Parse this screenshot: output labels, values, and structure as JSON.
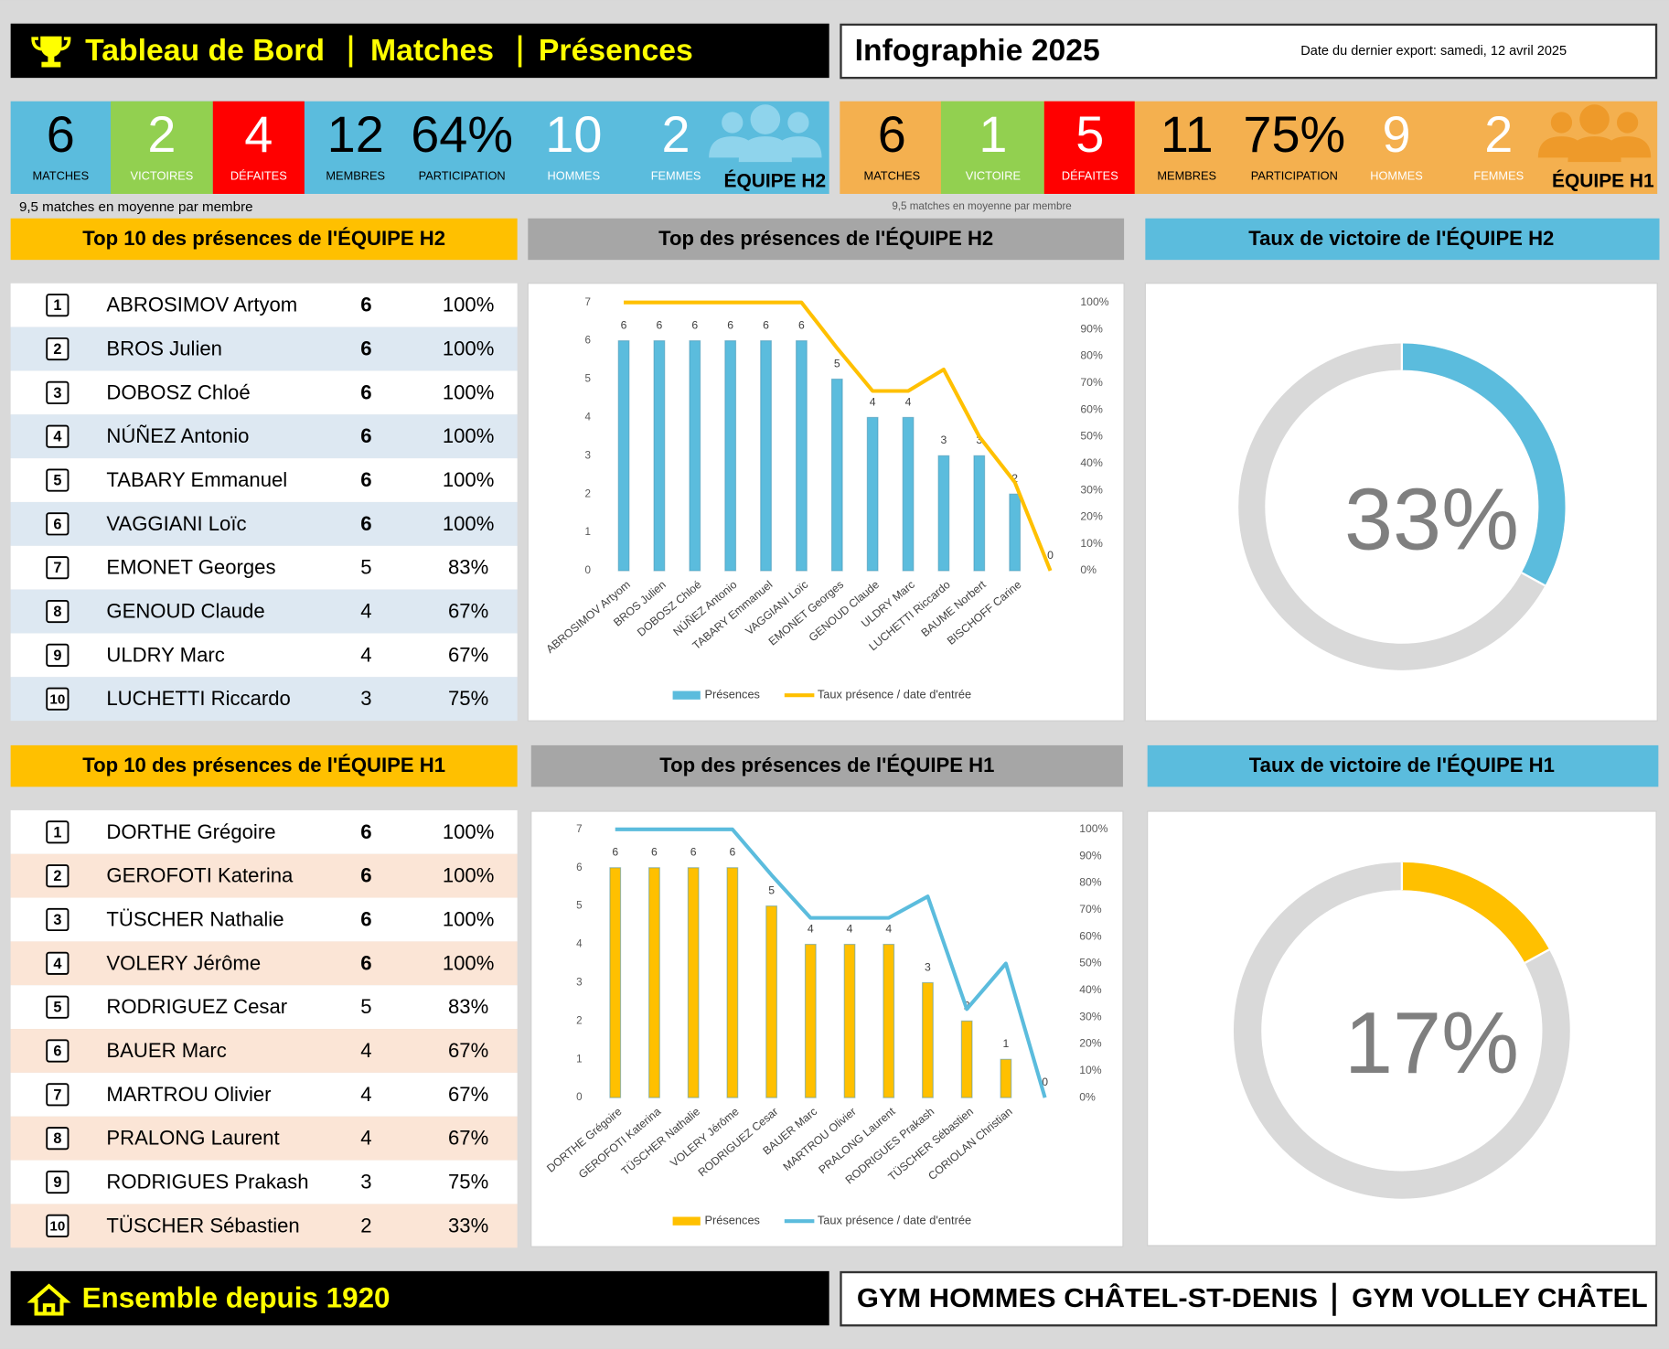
{
  "header": {
    "title_parts": [
      "Tableau de Bord",
      "Matches",
      "Présences"
    ],
    "subtitle": "Infographie 2025",
    "export": "Date du dernier export:  samedi, 12 avril 2025"
  },
  "teams": [
    {
      "name": "ÉQUIPE H2",
      "note": "9,5 matches en moyenne par membre",
      "kpis": [
        {
          "value": "6",
          "label": "MATCHES"
        },
        {
          "value": "2",
          "label": "VICTOIRES"
        },
        {
          "value": "4",
          "label": "DÉFAITES"
        },
        {
          "value": "12",
          "label": "MEMBRES"
        },
        {
          "value": "64%",
          "label": "PARTICIPATION"
        },
        {
          "value": "10",
          "label": "HOMMES"
        },
        {
          "value": "2",
          "label": "FEMMES"
        }
      ],
      "top10": {
        "title": "Top 10 des présences de l'ÉQUIPE H2",
        "rows": [
          [
            "1",
            "ABROSIMOV Artyom",
            "6",
            "100%"
          ],
          [
            "2",
            "BROS Julien",
            "6",
            "100%"
          ],
          [
            "3",
            "DOBOSZ Chloé",
            "6",
            "100%"
          ],
          [
            "4",
            "NÚÑEZ Antonio",
            "6",
            "100%"
          ],
          [
            "5",
            "TABARY Emmanuel",
            "6",
            "100%"
          ],
          [
            "6",
            "VAGGIANI Loïc",
            "6",
            "100%"
          ],
          [
            "7",
            "EMONET Georges",
            "5",
            "83%"
          ],
          [
            "8",
            "GENOUD Claude",
            "4",
            "67%"
          ],
          [
            "9",
            "ULDRY Marc",
            "4",
            "67%"
          ],
          [
            "10",
            "LUCHETTI Riccardo",
            "3",
            "75%"
          ]
        ]
      }
    },
    {
      "name": "ÉQUIPE H1",
      "note": "9,5 matches en moyenne par membre",
      "kpis": [
        {
          "value": "6",
          "label": "MATCHES"
        },
        {
          "value": "1",
          "label": "VICTOIRE"
        },
        {
          "value": "5",
          "label": "DÉFAITES"
        },
        {
          "value": "11",
          "label": "MEMBRES"
        },
        {
          "value": "75%",
          "label": "PARTICIPATION"
        },
        {
          "value": "9",
          "label": "HOMMES"
        },
        {
          "value": "2",
          "label": "FEMMES"
        }
      ],
      "top10": {
        "title": "Top 10 des présences de l'ÉQUIPE H1",
        "rows": [
          [
            "1",
            "DORTHE Grégoire",
            "6",
            "100%"
          ],
          [
            "2",
            "GEROFOTI Katerina",
            "6",
            "100%"
          ],
          [
            "3",
            "TÜSCHER Nathalie",
            "6",
            "100%"
          ],
          [
            "4",
            "VOLERY Jérôme",
            "6",
            "100%"
          ],
          [
            "5",
            "RODRIGUEZ Cesar",
            "5",
            "83%"
          ],
          [
            "6",
            "BAUER Marc",
            "4",
            "67%"
          ],
          [
            "7",
            "MARTROU Olivier",
            "4",
            "67%"
          ],
          [
            "8",
            "PRALONG Laurent",
            "4",
            "67%"
          ],
          [
            "9",
            "RODRIGUES Prakash",
            "3",
            "75%"
          ],
          [
            "10",
            "TÜSCHER Sébastien",
            "2",
            "33%"
          ]
        ]
      }
    }
  ],
  "chart_data": [
    {
      "type": "bar",
      "title": "Top des présences de l'ÉQUIPE H2",
      "categories": [
        "ABROSIMOV Artyom",
        "BROS Julien",
        "DOBOSZ Chloé",
        "NÚÑEZ Antonio",
        "TABARY Emmanuel",
        "VAGGIANI Loïc",
        "EMONET Georges",
        "GENOUD Claude",
        "ULDRY Marc",
        "LUCHETTI Riccardo",
        "BAUME Norbert",
        "BISCHOFF Carine",
        null
      ],
      "series": [
        {
          "name": "Présences",
          "type": "bar",
          "color": "#5bbcdd",
          "values": [
            6,
            6,
            6,
            6,
            6,
            6,
            5,
            4,
            4,
            3,
            3,
            2,
            0
          ]
        },
        {
          "name": "Taux présence / date d'entrée",
          "type": "line",
          "axis": "y2",
          "color": "#ffc000",
          "values": [
            100,
            100,
            100,
            100,
            100,
            100,
            83,
            67,
            67,
            75,
            50,
            33,
            0
          ]
        }
      ],
      "ylim": [
        0,
        7
      ],
      "yticks": [
        0,
        1,
        2,
        3,
        4,
        5,
        6,
        7
      ],
      "y2lim": [
        0,
        100
      ],
      "y2ticks": [
        {
          "value": 0,
          "label": "0%"
        },
        {
          "value": 10,
          "label": "10%"
        },
        {
          "value": 20,
          "label": "20%"
        },
        {
          "value": 30,
          "label": "30%"
        },
        {
          "value": 40,
          "label": "40%"
        },
        {
          "value": 50,
          "label": "50%"
        },
        {
          "value": 60,
          "label": "60%"
        },
        {
          "value": 70,
          "label": "70%"
        },
        {
          "value": 80,
          "label": "80%"
        },
        {
          "value": 90,
          "label": "90%"
        },
        {
          "value": 100,
          "label": "100%"
        }
      ],
      "legend": "bottom"
    },
    {
      "type": "pie",
      "title": "Taux de victoire de l'ÉQUIPE H2",
      "values": [
        33
      ],
      "value_labels": [
        "33%"
      ],
      "color": "#5bbcdd"
    },
    {
      "type": "bar",
      "title": "Top des présences de l'ÉQUIPE H1",
      "categories": [
        "DORTHE Grégoire",
        "GEROFOTI Katerina",
        "TÜSCHER Nathalie",
        "VOLERY Jérôme",
        "RODRIGUEZ Cesar",
        "BAUER Marc",
        "MARTROU Olivier",
        "PRALONG Laurent",
        "RODRIGUES Prakash",
        "TÜSCHER Sébastien",
        "CORIOLAN Christian",
        null
      ],
      "series": [
        {
          "name": "Présences",
          "type": "bar",
          "color": "#ffc000",
          "values": [
            6,
            6,
            6,
            6,
            5,
            4,
            4,
            4,
            3,
            2,
            1,
            0
          ]
        },
        {
          "name": "Taux présence / date d'entrée",
          "type": "line",
          "axis": "y2",
          "color": "#5bbcdd",
          "values": [
            100,
            100,
            100,
            100,
            83,
            67,
            67,
            67,
            75,
            33,
            50,
            0
          ]
        }
      ],
      "ylim": [
        0,
        7
      ],
      "yticks": [
        0,
        1,
        2,
        3,
        4,
        5,
        6,
        7
      ],
      "y2lim": [
        0,
        100
      ],
      "y2ticks": [
        {
          "value": 0,
          "label": "0%"
        },
        {
          "value": 10,
          "label": "10%"
        },
        {
          "value": 20,
          "label": "20%"
        },
        {
          "value": 30,
          "label": "30%"
        },
        {
          "value": 40,
          "label": "40%"
        },
        {
          "value": 50,
          "label": "50%"
        },
        {
          "value": 60,
          "label": "60%"
        },
        {
          "value": 70,
          "label": "70%"
        },
        {
          "value": 80,
          "label": "80%"
        },
        {
          "value": 90,
          "label": "90%"
        },
        {
          "value": 100,
          "label": "100%"
        }
      ],
      "legend": "bottom"
    },
    {
      "type": "pie",
      "title": "Taux de victoire de l'ÉQUIPE H1",
      "values": [
        17
      ],
      "value_labels": [
        "17%"
      ],
      "color": "#ffc000"
    }
  ],
  "footer": {
    "title": "Ensemble depuis 1920",
    "orgs": [
      "GYM HOMMES CHÂTEL-ST-DENIS",
      "GYM VOLLEY CHÂTEL"
    ]
  }
}
